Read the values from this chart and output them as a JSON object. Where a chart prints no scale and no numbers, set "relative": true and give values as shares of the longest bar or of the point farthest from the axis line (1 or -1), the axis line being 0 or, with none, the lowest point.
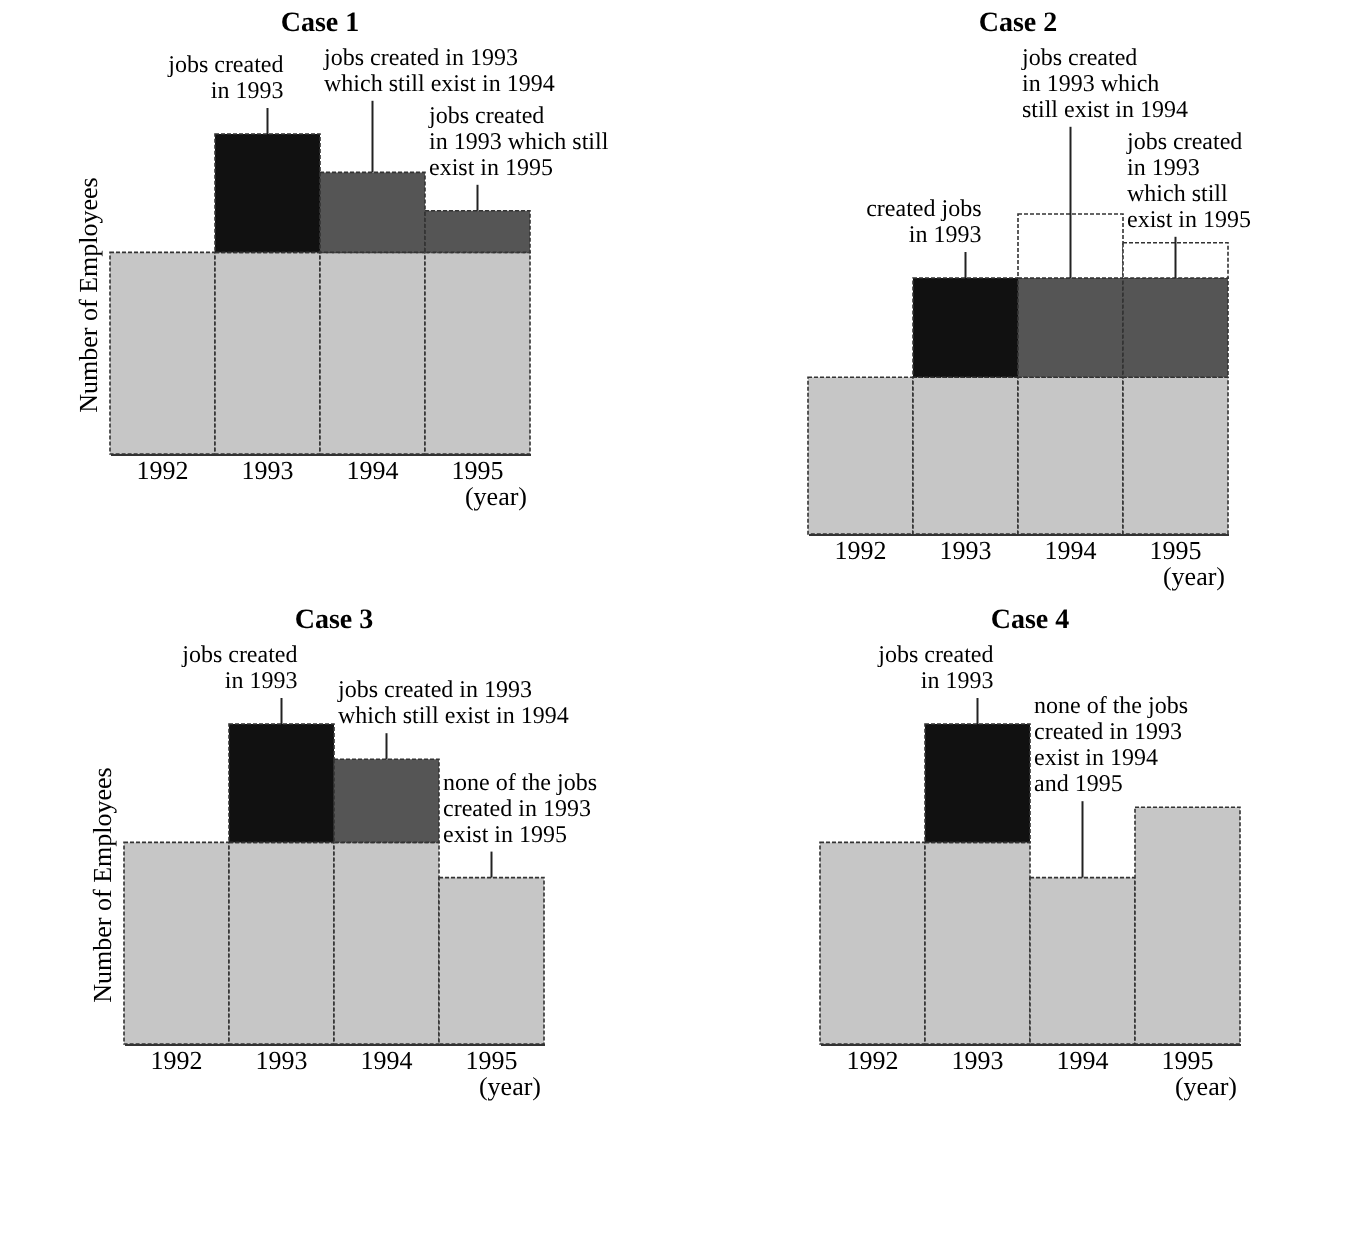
{
  "chart_data": [
    {
      "type": "bar",
      "title": "Case 1",
      "ylabel": "Number of Employees",
      "xlabel": "(year)",
      "categories": [
        "1992",
        "1993",
        "1994",
        "1995"
      ],
      "stacked": true,
      "relative": true,
      "series": [
        {
          "color": "#c6c6c6",
          "values": [
            0.63,
            0.63,
            0.63,
            0.63
          ]
        },
        {
          "color": "#111111",
          "values": [
            null,
            0.37,
            null,
            null
          ]
        },
        {
          "color": "#555555",
          "values": [
            null,
            null,
            0.25,
            0.13
          ]
        }
      ],
      "annotations": [
        {
          "text": "jobs created\nin 1993",
          "x": "1993",
          "y": 1.0
        },
        {
          "text": "jobs created in 1993\nwhich still exist in 1994",
          "x": "1994",
          "y": 0.88
        },
        {
          "text": "jobs created\nin 1993 which still\nexist in 1995",
          "x": "1995",
          "y": 0.76
        }
      ]
    },
    {
      "type": "bar",
      "title": "Case 2",
      "xlabel": "(year)",
      "categories": [
        "1992",
        "1993",
        "1994",
        "1995"
      ],
      "stacked": true,
      "relative": true,
      "series": [
        {
          "color": "#c6c6c6",
          "values": [
            0.49,
            0.49,
            0.49,
            0.49
          ]
        },
        {
          "color": "#111111",
          "values": [
            null,
            0.31,
            null,
            null
          ]
        },
        {
          "color": "#555555",
          "values": [
            null,
            null,
            0.31,
            0.31
          ]
        },
        {
          "color": "#ffffff",
          "values": [
            null,
            null,
            0.2,
            0.11
          ]
        }
      ],
      "annotations": [
        {
          "text": "created jobs\nin 1993",
          "x": "1993",
          "y": 0.8
        },
        {
          "text": "jobs created\nin 1993 which\nstill exist in 1994",
          "x": "1994",
          "y": 0.8
        },
        {
          "text": "jobs created\nin 1993\nwhich still\nexist in 1995",
          "x": "1995",
          "y": 0.8
        }
      ]
    },
    {
      "type": "bar",
      "title": "Case 3",
      "ylabel": "Number of Employees",
      "xlabel": "(year)",
      "categories": [
        "1992",
        "1993",
        "1994",
        "1995"
      ],
      "stacked": true,
      "relative": true,
      "series": [
        {
          "color": "#c6c6c6",
          "values": [
            0.63,
            0.63,
            0.63,
            0.52
          ]
        },
        {
          "color": "#111111",
          "values": [
            null,
            0.37,
            null,
            null
          ]
        },
        {
          "color": "#555555",
          "values": [
            null,
            null,
            0.26,
            null
          ]
        }
      ],
      "annotations": [
        {
          "text": "jobs created\nin 1993",
          "x": "1993",
          "y": 1.0
        },
        {
          "text": "jobs created in 1993\nwhich still exist in 1994",
          "x": "1994",
          "y": 0.89
        },
        {
          "text": "none of the jobs\ncreated in 1993\nexist in 1995",
          "x": "1995",
          "y": 0.52
        }
      ]
    },
    {
      "type": "bar",
      "title": "Case 4",
      "xlabel": "(year)",
      "categories": [
        "1992",
        "1993",
        "1994",
        "1995"
      ],
      "stacked": true,
      "relative": true,
      "series": [
        {
          "color": "#c6c6c6",
          "values": [
            0.63,
            0.63,
            0.52,
            0.74
          ]
        },
        {
          "color": "#111111",
          "values": [
            null,
            0.37,
            null,
            null
          ]
        }
      ],
      "annotations": [
        {
          "text": "jobs created\nin 1993",
          "x": "1993",
          "y": 1.0
        },
        {
          "text": "none of the jobs\ncreated in 1993\nexist in 1994\nand 1995",
          "x": "1994",
          "y": 0.52
        }
      ]
    }
  ]
}
